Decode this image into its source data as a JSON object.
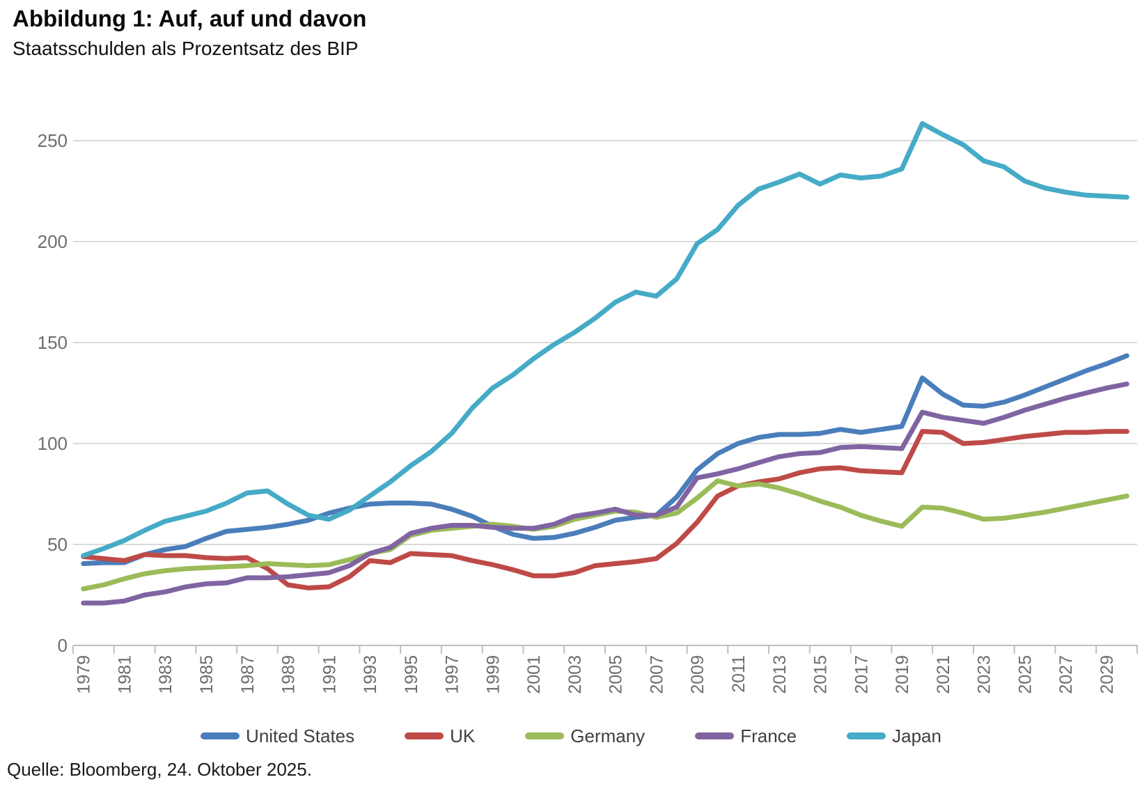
{
  "header": {
    "title": "Abbildung 1: Auf, auf und davon",
    "subtitle": "Staatsschulden als Prozentsatz des BIP"
  },
  "footer": {
    "source": "Quelle: Bloomberg, 24. Oktober 2025."
  },
  "colors": {
    "gridline": "#d9d9d9",
    "axis_line": "#bfbfbf",
    "axis_text": "#6d6d6d",
    "legend_text": "#3f3f3f"
  },
  "chart_data": {
    "type": "line",
    "title": "Abbildung 1: Auf, auf und davon",
    "subtitle": "Staatsschulden als Prozentsatz des BIP",
    "xlabel": "",
    "ylabel": "",
    "grid": true,
    "legend_position": "bottom",
    "ylim": [
      0,
      265
    ],
    "y_ticks": [
      0,
      50,
      100,
      150,
      200,
      250
    ],
    "x": [
      1979,
      1980,
      1981,
      1982,
      1983,
      1984,
      1985,
      1986,
      1987,
      1988,
      1989,
      1990,
      1991,
      1992,
      1993,
      1994,
      1995,
      1996,
      1997,
      1998,
      1999,
      2000,
      2001,
      2002,
      2003,
      2004,
      2005,
      2006,
      2007,
      2008,
      2009,
      2010,
      2011,
      2012,
      2013,
      2014,
      2015,
      2016,
      2017,
      2018,
      2019,
      2020,
      2021,
      2022,
      2023,
      2024,
      2025,
      2026,
      2027,
      2028,
      2029,
      2030
    ],
    "x_tick_labels": [
      1979,
      1981,
      1983,
      1985,
      1987,
      1989,
      1991,
      1993,
      1995,
      1997,
      1999,
      2001,
      2003,
      2005,
      2007,
      2009,
      2011,
      2013,
      2015,
      2017,
      2019,
      2021,
      2023,
      2025,
      2027,
      2029
    ],
    "series": [
      {
        "name": "United States",
        "color": "#4a7ebb",
        "values": [
          40.5,
          41,
          41,
          45,
          47.5,
          49,
          53,
          56.5,
          57.5,
          58.5,
          60,
          62,
          65.5,
          68,
          70,
          70.5,
          70.5,
          70,
          67.5,
          64,
          59,
          55,
          53,
          53.5,
          55.5,
          58.5,
          62,
          63.5,
          64.5,
          73.5,
          87,
          95,
          100,
          103,
          104.5,
          104.5,
          105,
          107,
          105.5,
          107,
          108.5,
          132.5,
          124.5,
          119,
          118.5,
          120.5,
          124,
          128,
          132,
          136,
          139.5,
          143.5
        ]
      },
      {
        "name": "UK",
        "color": "#be4a47",
        "values": [
          44,
          43,
          42,
          45,
          44.5,
          44.5,
          43.5,
          43,
          43.5,
          38,
          30,
          28.5,
          29,
          34,
          42,
          41,
          45.5,
          45,
          44.5,
          42,
          40,
          37.5,
          34.5,
          34.5,
          36,
          39.5,
          40.5,
          41.5,
          43,
          50.5,
          61,
          74,
          79,
          81,
          82.5,
          85.5,
          87.5,
          88,
          86.5,
          86,
          85.5,
          106,
          105.5,
          100,
          100.5,
          102,
          103.5,
          104.5,
          105.5,
          105.5,
          106,
          106
        ]
      },
      {
        "name": "Germany",
        "color": "#9bbb59",
        "values": [
          28,
          30,
          33,
          35.5,
          37,
          38,
          38.5,
          39,
          39.5,
          40.5,
          40,
          39.5,
          40,
          42.5,
          45.5,
          47.5,
          54.5,
          57,
          58,
          59,
          60,
          59,
          57.5,
          59,
          62.5,
          64.5,
          66.5,
          66,
          63.5,
          65.5,
          73,
          81.5,
          79,
          80,
          78,
          75,
          71.5,
          68.5,
          64.5,
          61.5,
          59,
          68.5,
          68,
          65.5,
          62.5,
          63,
          64.5,
          66,
          68,
          70,
          72,
          74
        ]
      },
      {
        "name": "France",
        "color": "#8064a2",
        "values": [
          21,
          21,
          22,
          25,
          26.5,
          29,
          30.5,
          31,
          33.5,
          33.5,
          34,
          35,
          36,
          39.5,
          45.5,
          48.5,
          55.5,
          58,
          59.5,
          59.5,
          58.5,
          58,
          58,
          60,
          64,
          65.5,
          67.5,
          64.5,
          64.5,
          68.5,
          83,
          85,
          87.5,
          90.5,
          93.5,
          95,
          95.5,
          98,
          98.5,
          98,
          97.5,
          115.5,
          113,
          111.5,
          110,
          113,
          116.5,
          119.5,
          122.5,
          125,
          127.5,
          129.5
        ]
      },
      {
        "name": "Japan",
        "color": "#45abc6",
        "values": [
          44.5,
          48,
          52,
          57,
          61.5,
          64,
          66.5,
          70.5,
          75.5,
          76.5,
          70,
          64.5,
          62.5,
          67,
          74,
          81,
          89,
          96,
          105,
          117.5,
          127.5,
          134,
          142,
          149,
          155,
          162,
          170,
          175,
          173,
          181.5,
          199,
          206,
          218,
          226,
          229.5,
          233.5,
          228.5,
          233,
          231.5,
          232.5,
          236,
          258.5,
          253,
          248,
          240,
          237,
          230,
          226.5,
          224.5,
          223,
          222.5,
          222
        ]
      }
    ]
  }
}
